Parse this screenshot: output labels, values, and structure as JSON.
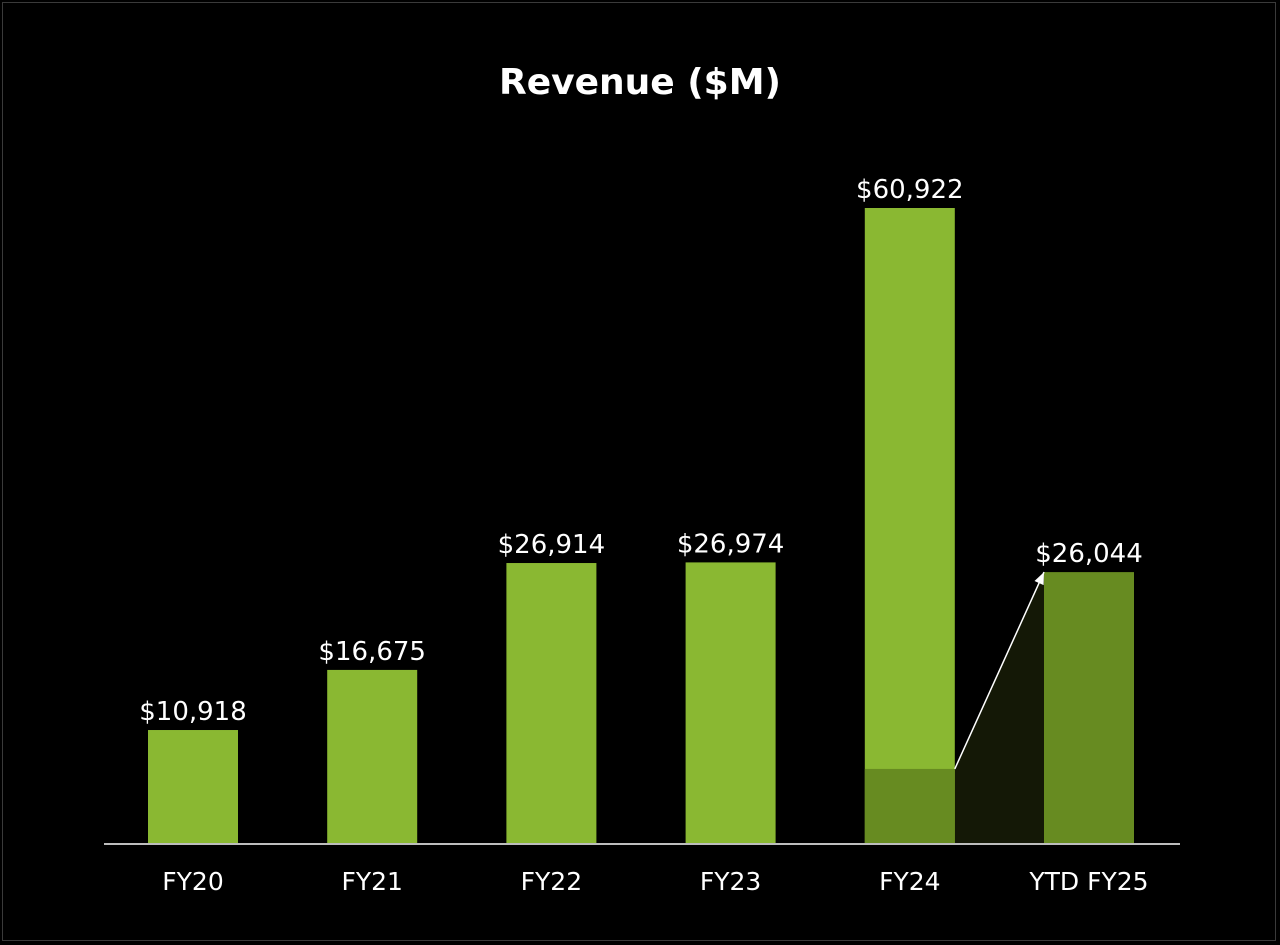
{
  "chart_data": {
    "type": "bar",
    "title": "Revenue ($M)",
    "xlabel": "",
    "ylabel": "",
    "categories": [
      "FY20",
      "FY21",
      "FY22",
      "FY23",
      "FY24",
      "YTD FY25"
    ],
    "values": [
      10918,
      16675,
      26914,
      26974,
      60922,
      26044
    ],
    "value_labels": [
      "$10,918",
      "$16,675",
      "$26,914",
      "$26,974",
      "$60,922",
      "$26,044"
    ],
    "ylim": [
      0,
      65000
    ],
    "grid": false,
    "legend": "none",
    "highlight": {
      "category": "FY24",
      "segment_value": 7192,
      "connector_to": "YTD FY25"
    },
    "colors": {
      "bar": "#8ab832",
      "bar_dark": "#678b21",
      "band": "#141806",
      "axis": "#bdbdbd",
      "text": "#ffffff",
      "background": "#000000"
    }
  }
}
